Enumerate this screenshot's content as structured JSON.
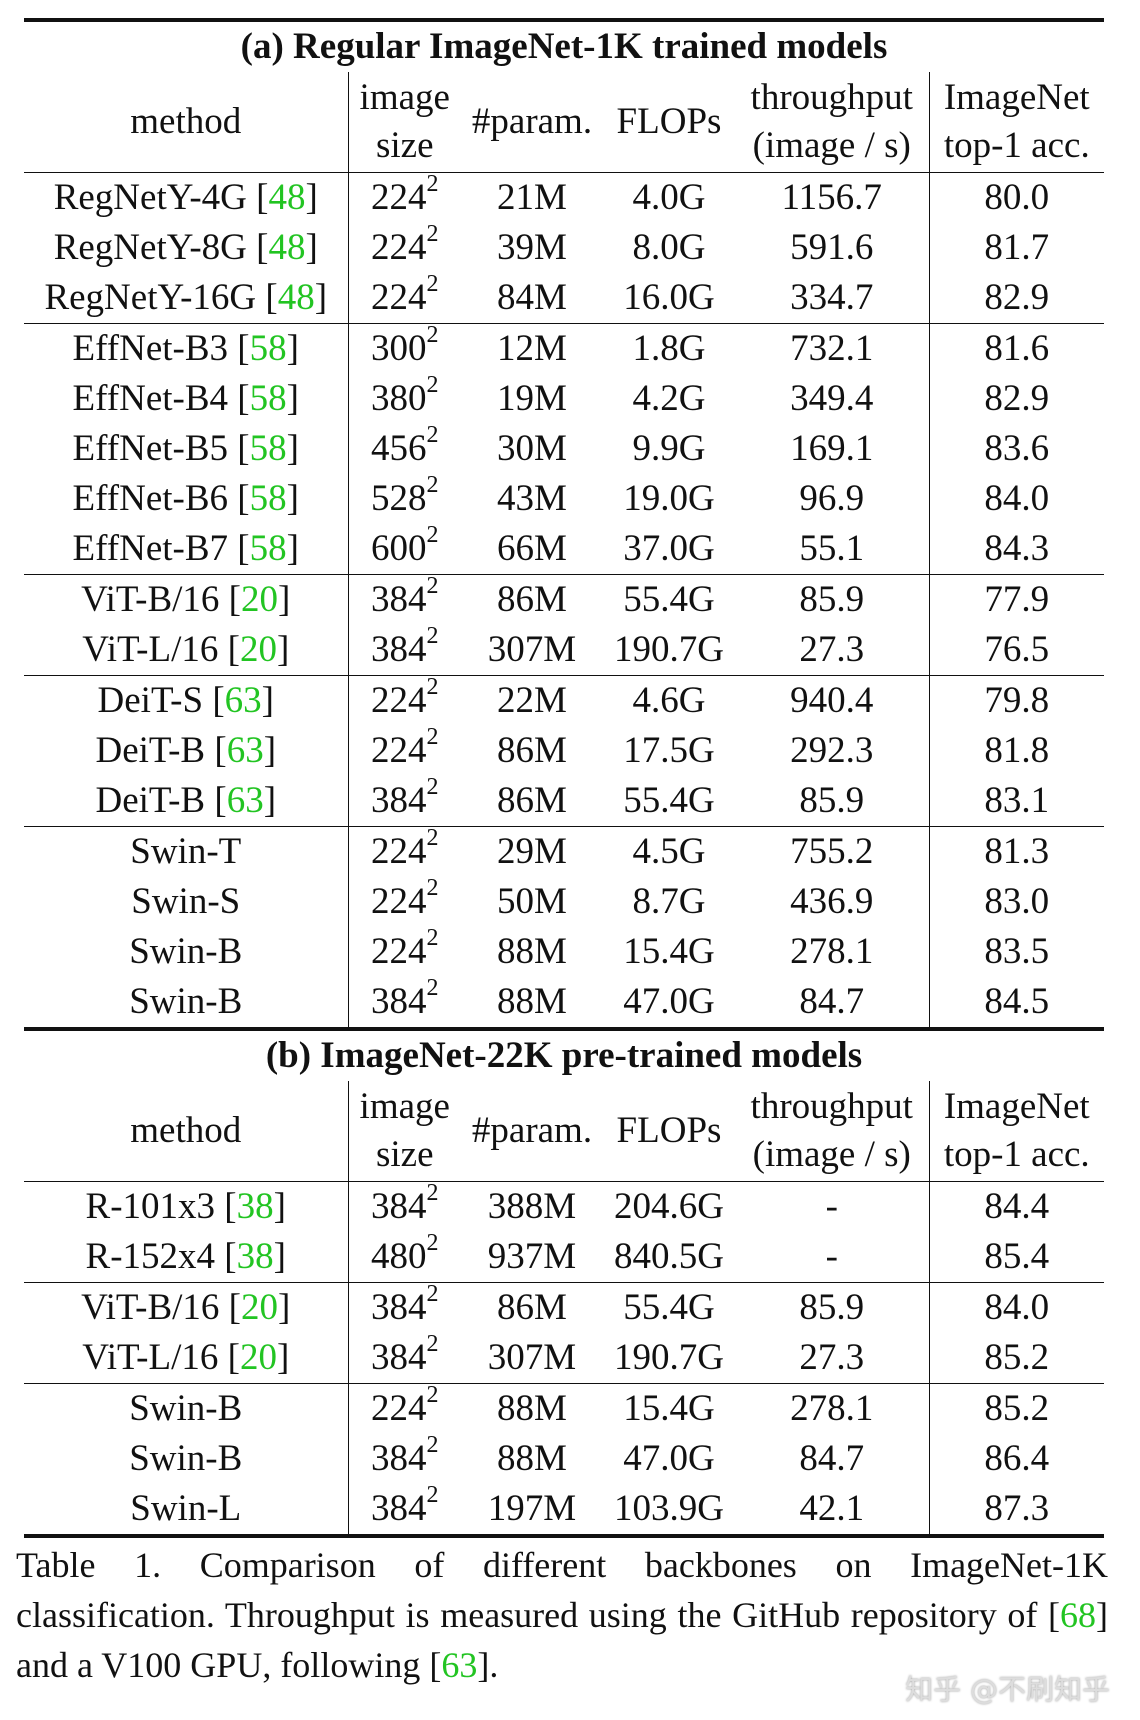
{
  "sections": [
    {
      "title": "(a) Regular ImageNet-1K trained models",
      "header": {
        "method": "method",
        "size": [
          "image",
          "size"
        ],
        "params": "#param.",
        "flops": "FLOPs",
        "throughput": [
          "throughput",
          "(image / s)"
        ],
        "acc": [
          "ImageNet",
          "top-1 acc."
        ]
      },
      "groups": [
        [
          {
            "method": "RegNetY-4G",
            "cite": [
              "[",
              "48",
              "]"
            ],
            "size": "224",
            "size_exp": "2",
            "params": "21M",
            "flops": "4.0G",
            "throughput": "1156.7",
            "acc": "80.0"
          },
          {
            "method": "RegNetY-8G",
            "cite": [
              "[",
              "48",
              "]"
            ],
            "size": "224",
            "size_exp": "2",
            "params": "39M",
            "flops": "8.0G",
            "throughput": "591.6",
            "acc": "81.7"
          },
          {
            "method": "RegNetY-16G",
            "cite": [
              "[",
              "48",
              "]"
            ],
            "size": "224",
            "size_exp": "2",
            "params": "84M",
            "flops": "16.0G",
            "throughput": "334.7",
            "acc": "82.9"
          }
        ],
        [
          {
            "method": "EffNet-B3",
            "cite": [
              "[",
              "58",
              "]"
            ],
            "size": "300",
            "size_exp": "2",
            "params": "12M",
            "flops": "1.8G",
            "throughput": "732.1",
            "acc": "81.6"
          },
          {
            "method": "EffNet-B4",
            "cite": [
              "[",
              "58",
              "]"
            ],
            "size": "380",
            "size_exp": "2",
            "params": "19M",
            "flops": "4.2G",
            "throughput": "349.4",
            "acc": "82.9"
          },
          {
            "method": "EffNet-B5",
            "cite": [
              "[",
              "58",
              "]"
            ],
            "size": "456",
            "size_exp": "2",
            "params": "30M",
            "flops": "9.9G",
            "throughput": "169.1",
            "acc": "83.6"
          },
          {
            "method": "EffNet-B6",
            "cite": [
              "[",
              "58",
              "]"
            ],
            "size": "528",
            "size_exp": "2",
            "params": "43M",
            "flops": "19.0G",
            "throughput": "96.9",
            "acc": "84.0"
          },
          {
            "method": "EffNet-B7",
            "cite": [
              "[",
              "58",
              "]"
            ],
            "size": "600",
            "size_exp": "2",
            "params": "66M",
            "flops": "37.0G",
            "throughput": "55.1",
            "acc": "84.3"
          }
        ],
        [
          {
            "method": "ViT-B/16",
            "cite": [
              "[",
              "20",
              "]"
            ],
            "size": "384",
            "size_exp": "2",
            "params": "86M",
            "flops": "55.4G",
            "throughput": "85.9",
            "acc": "77.9"
          },
          {
            "method": "ViT-L/16",
            "cite": [
              "[",
              "20",
              "]"
            ],
            "size": "384",
            "size_exp": "2",
            "params": "307M",
            "flops": "190.7G",
            "throughput": "27.3",
            "acc": "76.5"
          }
        ],
        [
          {
            "method": "DeiT-S",
            "cite": [
              "[",
              "63",
              "]"
            ],
            "size": "224",
            "size_exp": "2",
            "params": "22M",
            "flops": "4.6G",
            "throughput": "940.4",
            "acc": "79.8"
          },
          {
            "method": "DeiT-B",
            "cite": [
              "[",
              "63",
              "]"
            ],
            "size": "224",
            "size_exp": "2",
            "params": "86M",
            "flops": "17.5G",
            "throughput": "292.3",
            "acc": "81.8"
          },
          {
            "method": "DeiT-B",
            "cite": [
              "[",
              "63",
              "]"
            ],
            "size": "384",
            "size_exp": "2",
            "params": "86M",
            "flops": "55.4G",
            "throughput": "85.9",
            "acc": "83.1"
          }
        ],
        [
          {
            "method": "Swin-T",
            "size": "224",
            "size_exp": "2",
            "params": "29M",
            "flops": "4.5G",
            "throughput": "755.2",
            "acc": "81.3"
          },
          {
            "method": "Swin-S",
            "size": "224",
            "size_exp": "2",
            "params": "50M",
            "flops": "8.7G",
            "throughput": "436.9",
            "acc": "83.0"
          },
          {
            "method": "Swin-B",
            "size": "224",
            "size_exp": "2",
            "params": "88M",
            "flops": "15.4G",
            "throughput": "278.1",
            "acc": "83.5"
          },
          {
            "method": "Swin-B",
            "size": "384",
            "size_exp": "2",
            "params": "88M",
            "flops": "47.0G",
            "throughput": "84.7",
            "acc": "84.5"
          }
        ]
      ]
    },
    {
      "title": "(b) ImageNet-22K pre-trained models",
      "header": {
        "method": "method",
        "size": [
          "image",
          "size"
        ],
        "params": "#param.",
        "flops": "FLOPs",
        "throughput": [
          "throughput",
          "(image / s)"
        ],
        "acc": [
          "ImageNet",
          "top-1 acc."
        ]
      },
      "groups": [
        [
          {
            "method": "R-101x3",
            "cite": [
              "[",
              "38",
              "]"
            ],
            "size": "384",
            "size_exp": "2",
            "params": "388M",
            "flops": "204.6G",
            "throughput": "-",
            "acc": "84.4"
          },
          {
            "method": "R-152x4",
            "cite": [
              "[",
              "38",
              "]"
            ],
            "size": "480",
            "size_exp": "2",
            "params": "937M",
            "flops": "840.5G",
            "throughput": "-",
            "acc": "85.4"
          }
        ],
        [
          {
            "method": "ViT-B/16",
            "cite": [
              "[",
              "20",
              "]"
            ],
            "size": "384",
            "size_exp": "2",
            "params": "86M",
            "flops": "55.4G",
            "throughput": "85.9",
            "acc": "84.0"
          },
          {
            "method": "ViT-L/16",
            "cite": [
              "[",
              "20",
              "]"
            ],
            "size": "384",
            "size_exp": "2",
            "params": "307M",
            "flops": "190.7G",
            "throughput": "27.3",
            "acc": "85.2"
          }
        ],
        [
          {
            "method": "Swin-B",
            "size": "224",
            "size_exp": "2",
            "params": "88M",
            "flops": "15.4G",
            "throughput": "278.1",
            "acc": "85.2"
          },
          {
            "method": "Swin-B",
            "size": "384",
            "size_exp": "2",
            "params": "88M",
            "flops": "47.0G",
            "throughput": "84.7",
            "acc": "86.4"
          },
          {
            "method": "Swin-L",
            "size": "384",
            "size_exp": "2",
            "params": "197M",
            "flops": "103.9G",
            "throughput": "42.1",
            "acc": "87.3"
          }
        ]
      ]
    }
  ],
  "caption": [
    "Table 1. Comparison of different backbones on ImageNet-1K classification. Throughput is measured using the GitHub repository of ",
    "[",
    "68",
    "] and a V100 GPU, following ",
    "[",
    "63",
    "]."
  ],
  "watermark": "知乎 @不刷知乎"
}
